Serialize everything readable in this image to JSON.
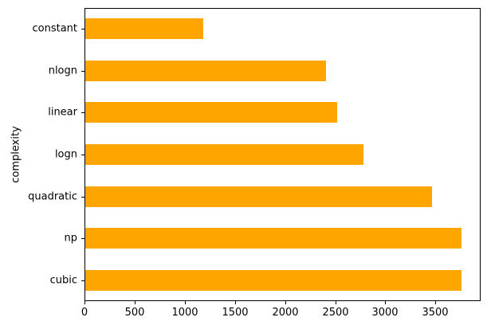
{
  "chart_data": {
    "type": "bar",
    "orientation": "horizontal",
    "title": "",
    "xlabel": "",
    "ylabel": "complexity",
    "categories": [
      "constant",
      "nlogn",
      "linear",
      "logn",
      "quadratic",
      "np",
      "cubic"
    ],
    "values": [
      1180,
      2400,
      2510,
      2770,
      3460,
      3755,
      3755
    ],
    "xticks": [
      0,
      500,
      1000,
      1500,
      2000,
      2500,
      3000,
      3500
    ],
    "xlim": [
      0,
      3950
    ],
    "bar_color": "#FFA500",
    "axis_color": "#000000",
    "text_color": "#000000",
    "background_color": "#FFFFFF",
    "grid": false,
    "legend": null,
    "bar_relative_height": 0.5
  }
}
